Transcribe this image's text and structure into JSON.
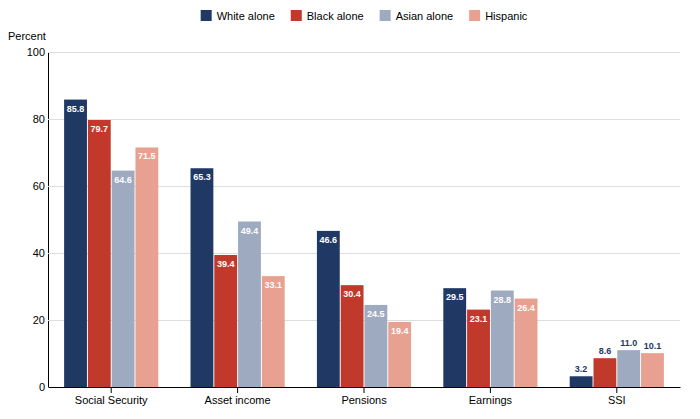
{
  "chart_data": {
    "type": "bar",
    "ylabel": "Percent",
    "categories": [
      "Social Security",
      "Asset income",
      "Pensions",
      "Earnings",
      "SSI"
    ],
    "series": [
      {
        "name": "White alone",
        "color": "#1f3864",
        "values": [
          85.8,
          65.3,
          46.6,
          29.5,
          3.2
        ],
        "value_labels": [
          "85.8",
          "65.3",
          "46.6",
          "29.5",
          "3.2"
        ]
      },
      {
        "name": "Black alone",
        "color": "#c0392b",
        "values": [
          79.7,
          39.4,
          30.4,
          23.1,
          8.6
        ],
        "value_labels": [
          "79.7",
          "39.4",
          "30.4",
          "23.1",
          "8.6"
        ]
      },
      {
        "name": "Asian alone",
        "color": "#9daabf",
        "values": [
          64.6,
          49.4,
          24.5,
          28.8,
          11.0
        ],
        "value_labels": [
          "64.6",
          "49.4",
          "24.5",
          "28.8",
          "11.0"
        ]
      },
      {
        "name": "Hispanic",
        "color": "#e8a090",
        "values": [
          71.5,
          33.1,
          19.4,
          26.4,
          10.1
        ],
        "value_labels": [
          "71.5",
          "33.1",
          "19.4",
          "26.4",
          "10.1"
        ]
      }
    ],
    "ylim": [
      0,
      100
    ],
    "yticks": [
      0,
      20,
      40,
      60,
      80,
      100
    ],
    "grid": true,
    "legend": "top",
    "data_labels": true
  }
}
